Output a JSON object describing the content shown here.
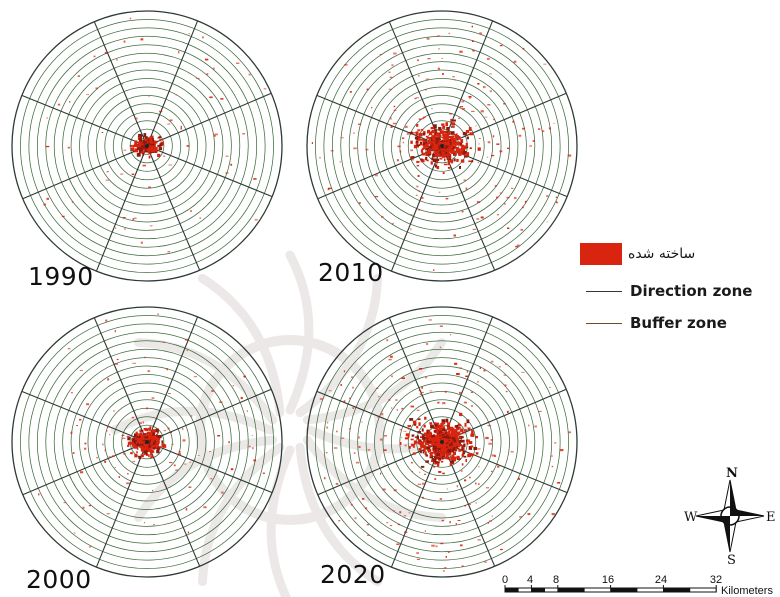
{
  "maps": [
    {
      "year": "1990",
      "urban_extent": 0.1
    },
    {
      "year": "2010",
      "urban_extent": 0.22
    },
    {
      "year": "2000",
      "urban_extent": 0.14
    },
    {
      "year": "2020",
      "urban_extent": 0.25
    }
  ],
  "direction_zone_count": 8,
  "buffer_zone_count": 16,
  "legend": {
    "built_up": "ساخته شده",
    "direction_zone": "Direction zone",
    "buffer_zone": "Buffer zone"
  },
  "north_arrow": {
    "n": "N",
    "e": "E",
    "s": "S",
    "w": "W"
  },
  "scale_bar": {
    "ticks": [
      "0",
      "4",
      "8",
      "16",
      "24",
      "32"
    ],
    "tick_values": [
      0,
      4,
      8,
      16,
      24,
      32
    ],
    "unit": "Kilometers"
  },
  "colors": {
    "built_up": "#d9250f",
    "direction_line": "#2e3a33",
    "buffer_line": "#3d6b3d",
    "watermark": "#ece8e8"
  }
}
